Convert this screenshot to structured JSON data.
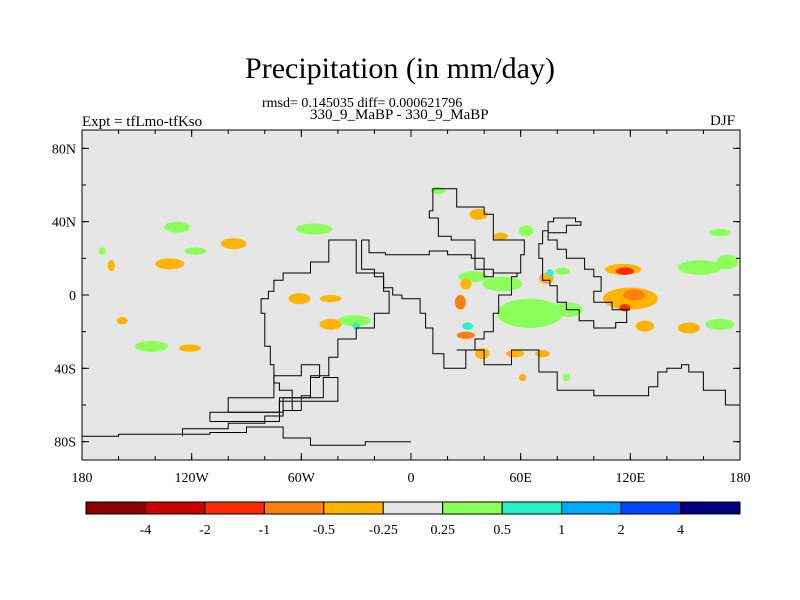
{
  "chart_data": {
    "type": "heatmap",
    "title": "Precipitation (in mm/day)",
    "stats_line": "rmsd= 0.145035 diff= 0.000621796",
    "subtitle": "330_9_MaBP - 330_9_MaBP",
    "left_label": "Expt = tfLmo-tfKso",
    "right_label": "DJF",
    "xlim": [
      -180,
      180
    ],
    "ylim": [
      -90,
      90
    ],
    "x_ticks": [
      {
        "value": -180,
        "label": "180"
      },
      {
        "value": -120,
        "label": "120W"
      },
      {
        "value": -60,
        "label": "60W"
      },
      {
        "value": 0,
        "label": "0"
      },
      {
        "value": 60,
        "label": "60E"
      },
      {
        "value": 120,
        "label": "120E"
      },
      {
        "value": 180,
        "label": "180"
      }
    ],
    "y_ticks": [
      {
        "value": 80,
        "label": "80N"
      },
      {
        "value": 40,
        "label": "40N"
      },
      {
        "value": 0,
        "label": "0"
      },
      {
        "value": -40,
        "label": "40S"
      },
      {
        "value": -80,
        "label": "80S"
      }
    ],
    "colorbar": {
      "colors": [
        "#8b0000",
        "#c80000",
        "#ff2a00",
        "#ff7f0f",
        "#ffb400",
        "#e6e6e6",
        "#8cff5a",
        "#28f0c8",
        "#00aaff",
        "#0044ff",
        "#000080"
      ],
      "levels": [
        "-4",
        "-2",
        "-1",
        "-0.5",
        "-0.25",
        "0.25",
        "0.5",
        "1",
        "2",
        "4"
      ]
    },
    "background_color": "#e6e6e6",
    "anomaly_patches": [
      {
        "lon": 15,
        "lat": 57,
        "rx": 4,
        "ry": 2,
        "color": "#8cff5a"
      },
      {
        "lon": 37,
        "lat": 44,
        "rx": 5,
        "ry": 3,
        "color": "#ffb400"
      },
      {
        "lon": -53,
        "lat": 36,
        "rx": 10,
        "ry": 3,
        "color": "#8cff5a"
      },
      {
        "lon": -128,
        "lat": 37,
        "rx": 7,
        "ry": 3,
        "color": "#8cff5a"
      },
      {
        "lon": -97,
        "lat": 28,
        "rx": 7,
        "ry": 3,
        "color": "#ffb400"
      },
      {
        "lon": -118,
        "lat": 24,
        "rx": 6,
        "ry": 2,
        "color": "#8cff5a"
      },
      {
        "lon": -132,
        "lat": 17,
        "rx": 8,
        "ry": 3,
        "color": "#ffb400"
      },
      {
        "lon": -164,
        "lat": 16,
        "rx": 2,
        "ry": 3,
        "color": "#ffb400"
      },
      {
        "lon": -169,
        "lat": 24,
        "rx": 2,
        "ry": 2,
        "color": "#8cff5a"
      },
      {
        "lon": 49,
        "lat": 32,
        "rx": 4,
        "ry": 2,
        "color": "#ffb400"
      },
      {
        "lon": 63,
        "lat": 35,
        "rx": 4,
        "ry": 3,
        "color": "#8cff5a"
      },
      {
        "lon": 34,
        "lat": 10,
        "rx": 8,
        "ry": 3,
        "color": "#8cff5a"
      },
      {
        "lon": 50,
        "lat": 6,
        "rx": 11,
        "ry": 4,
        "color": "#8cff5a"
      },
      {
        "lon": 30,
        "lat": 6,
        "rx": 3,
        "ry": 3,
        "color": "#ffb400"
      },
      {
        "lon": 27,
        "lat": -4,
        "rx": 3,
        "ry": 4,
        "color": "#ff7f0f"
      },
      {
        "lon": 74,
        "lat": 9,
        "rx": 4,
        "ry": 3,
        "color": "#ffb400"
      },
      {
        "lon": 83,
        "lat": 13,
        "rx": 4,
        "ry": 2,
        "color": "#8cff5a"
      },
      {
        "lon": 76,
        "lat": 12,
        "rx": 2,
        "ry": 2,
        "color": "#28f0c8"
      },
      {
        "lon": 116,
        "lat": 14,
        "rx": 10,
        "ry": 3,
        "color": "#ffb400"
      },
      {
        "lon": 117,
        "lat": 13,
        "rx": 5,
        "ry": 2,
        "color": "#ff2a00"
      },
      {
        "lon": 158,
        "lat": 15,
        "rx": 12,
        "ry": 4,
        "color": "#8cff5a"
      },
      {
        "lon": 173,
        "lat": 18,
        "rx": 6,
        "ry": 4,
        "color": "#8cff5a"
      },
      {
        "lon": 169,
        "lat": 34,
        "rx": 6,
        "ry": 2,
        "color": "#8cff5a"
      },
      {
        "lon": 65,
        "lat": -10,
        "rx": 18,
        "ry": 8,
        "color": "#8cff5a"
      },
      {
        "lon": 86,
        "lat": -8,
        "rx": 8,
        "ry": 4,
        "color": "#8cff5a"
      },
      {
        "lon": 120,
        "lat": -2,
        "rx": 15,
        "ry": 6,
        "color": "#ffb400"
      },
      {
        "lon": 122,
        "lat": 0,
        "rx": 6,
        "ry": 3,
        "color": "#ff7f0f"
      },
      {
        "lon": 117,
        "lat": -7,
        "rx": 3,
        "ry": 2,
        "color": "#ff2a00"
      },
      {
        "lon": 128,
        "lat": -17,
        "rx": 5,
        "ry": 3,
        "color": "#ffb400"
      },
      {
        "lon": 152,
        "lat": -18,
        "rx": 6,
        "ry": 3,
        "color": "#ffb400"
      },
      {
        "lon": 169,
        "lat": -16,
        "rx": 8,
        "ry": 3,
        "color": "#8cff5a"
      },
      {
        "lon": -44,
        "lat": -2,
        "rx": 6,
        "ry": 2,
        "color": "#ffb400"
      },
      {
        "lon": -61,
        "lat": -2,
        "rx": 6,
        "ry": 3,
        "color": "#ffb400"
      },
      {
        "lon": -31,
        "lat": -14,
        "rx": 9,
        "ry": 3,
        "color": "#8cff5a"
      },
      {
        "lon": -44,
        "lat": -16,
        "rx": 6,
        "ry": 3,
        "color": "#ffb400"
      },
      {
        "lon": -30,
        "lat": -17,
        "rx": 2,
        "ry": 2,
        "color": "#28f0c8"
      },
      {
        "lon": -142,
        "lat": -28,
        "rx": 9,
        "ry": 3,
        "color": "#8cff5a"
      },
      {
        "lon": -121,
        "lat": -29,
        "rx": 6,
        "ry": 2,
        "color": "#ffb400"
      },
      {
        "lon": -158,
        "lat": -14,
        "rx": 3,
        "ry": 2,
        "color": "#ffb400"
      },
      {
        "lon": 30,
        "lat": -22,
        "rx": 5,
        "ry": 2,
        "color": "#ff7f0f"
      },
      {
        "lon": 39,
        "lat": -32,
        "rx": 4,
        "ry": 3,
        "color": "#ffb400"
      },
      {
        "lon": 57,
        "lat": -32,
        "rx": 5,
        "ry": 2,
        "color": "#ffb400"
      },
      {
        "lon": 72,
        "lat": -32,
        "rx": 4,
        "ry": 2,
        "color": "#ffb400"
      },
      {
        "lon": 31,
        "lat": -17,
        "rx": 3,
        "ry": 2,
        "color": "#28f0c8"
      },
      {
        "lon": 85,
        "lat": -45,
        "rx": 2,
        "ry": 2,
        "color": "#8cff5a"
      },
      {
        "lon": 61,
        "lat": -45,
        "rx": 2,
        "ry": 2,
        "color": "#ffb400"
      }
    ],
    "coastlines": [
      [
        [
          0,
          -80
        ],
        [
          -10,
          -80
        ],
        [
          -25,
          -82
        ],
        [
          -40,
          -82
        ],
        [
          -55,
          -78
        ],
        [
          -70,
          -72
        ],
        [
          -90,
          -75
        ],
        [
          -110,
          -76
        ],
        [
          -130,
          -76
        ],
        [
          -160,
          -77
        ],
        [
          -180,
          -76
        ]
      ],
      [
        [
          -60,
          -63
        ],
        [
          -70,
          -66
        ],
        [
          -80,
          -70
        ],
        [
          -100,
          -73
        ],
        [
          -125,
          -74
        ],
        [
          -125,
          -77
        ]
      ],
      [
        [
          -60,
          -63
        ],
        [
          -65,
          -58
        ],
        [
          -65,
          -52
        ],
        [
          -72,
          -48
        ],
        [
          -75,
          -38
        ],
        [
          -77,
          -28
        ],
        [
          -80,
          -18
        ],
        [
          -80,
          -10
        ],
        [
          -82,
          -2
        ],
        [
          -78,
          2
        ],
        [
          -75,
          8
        ],
        [
          -70,
          12
        ],
        [
          -63,
          12
        ],
        [
          -55,
          18
        ],
        [
          -45,
          30
        ],
        [
          -30,
          22
        ],
        [
          -30,
          12
        ],
        [
          -15,
          2
        ],
        [
          -12,
          -10
        ],
        [
          -20,
          -18
        ],
        [
          -30,
          -24
        ],
        [
          -40,
          -34
        ],
        [
          -45,
          -44
        ],
        [
          -55,
          -55
        ],
        [
          -60,
          -63
        ]
      ],
      [
        [
          -100,
          -64
        ],
        [
          -72,
          -56
        ],
        [
          -55,
          -45
        ],
        [
          -50,
          -38
        ],
        [
          -60,
          -44
        ],
        [
          -75,
          -56
        ],
        [
          -100,
          -64
        ]
      ],
      [
        [
          -110,
          -69
        ],
        [
          -72,
          -58
        ],
        [
          -40,
          -45
        ],
        [
          -48,
          -56
        ],
        [
          -70,
          -64
        ],
        [
          -110,
          -69
        ]
      ],
      [
        [
          -27,
          30
        ],
        [
          -23,
          23
        ],
        [
          -14,
          22
        ],
        [
          10,
          24
        ],
        [
          20,
          22
        ],
        [
          33,
          20
        ],
        [
          40,
          10
        ],
        [
          45,
          12
        ],
        [
          55,
          12
        ],
        [
          58,
          10
        ],
        [
          55,
          0
        ],
        [
          48,
          -10
        ],
        [
          45,
          -20
        ],
        [
          40,
          -24
        ],
        [
          35,
          -30
        ],
        [
          30,
          -40
        ],
        [
          18,
          -32
        ],
        [
          12,
          -18
        ],
        [
          8,
          -10
        ],
        [
          5,
          -2
        ],
        [
          -5,
          0
        ],
        [
          -10,
          4
        ],
        [
          -15,
          10
        ],
        [
          -20,
          14
        ],
        [
          -27,
          30
        ]
      ],
      [
        [
          10,
          46
        ],
        [
          12,
          58
        ],
        [
          25,
          58
        ],
        [
          25,
          48
        ],
        [
          40,
          44
        ],
        [
          45,
          30
        ],
        [
          55,
          30
        ],
        [
          62,
          22
        ],
        [
          60,
          12
        ],
        [
          45,
          14
        ],
        [
          35,
          30
        ],
        [
          22,
          32
        ],
        [
          15,
          42
        ],
        [
          10,
          46
        ]
      ],
      [
        [
          75,
          34
        ],
        [
          85,
          38
        ],
        [
          92,
          38
        ],
        [
          93,
          40
        ],
        [
          90,
          42
        ],
        [
          78,
          40
        ],
        [
          75,
          34
        ]
      ],
      [
        [
          72,
          35
        ],
        [
          75,
          30
        ],
        [
          80,
          25
        ],
        [
          85,
          20
        ],
        [
          90,
          20
        ],
        [
          95,
          14
        ],
        [
          100,
          10
        ],
        [
          104,
          2
        ],
        [
          100,
          -4
        ],
        [
          110,
          -8
        ],
        [
          120,
          -8
        ],
        [
          118,
          -15
        ],
        [
          112,
          -18
        ],
        [
          100,
          -14
        ],
        [
          92,
          -8
        ],
        [
          85,
          -4
        ],
        [
          80,
          5
        ],
        [
          76,
          8
        ],
        [
          72,
          20
        ],
        [
          70,
          28
        ],
        [
          72,
          35
        ]
      ],
      [
        [
          130,
          -50
        ],
        [
          135,
          -42
        ],
        [
          140,
          -40
        ],
        [
          148,
          -38
        ],
        [
          152,
          -42
        ],
        [
          160,
          -52
        ],
        [
          172,
          -60
        ],
        [
          180,
          -67
        ]
      ],
      [
        [
          58,
          -30
        ],
        [
          70,
          -42
        ],
        [
          80,
          -52
        ],
        [
          100,
          -55
        ],
        [
          130,
          -50
        ]
      ],
      [
        [
          25,
          -30
        ],
        [
          40,
          -38
        ],
        [
          55,
          -30
        ],
        [
          58,
          -30
        ]
      ]
    ]
  }
}
